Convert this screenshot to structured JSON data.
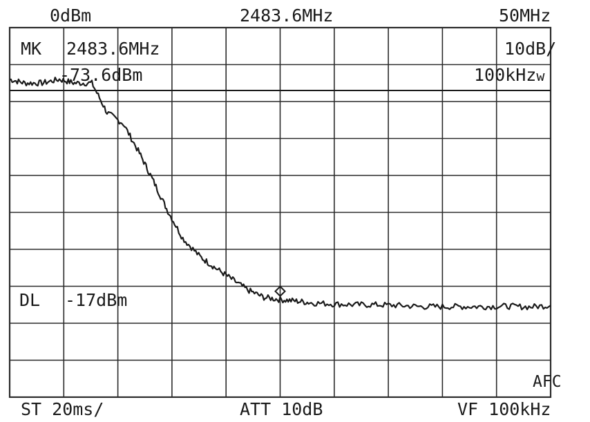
{
  "header": {
    "ref_level": "0dBm",
    "center_freq": "2483.6MHz",
    "span": "50MHz"
  },
  "marker": {
    "label": "MK",
    "freq": "2483.6MHz",
    "level": "-73.6dBm"
  },
  "settings": {
    "scale": "10dB/",
    "rbw": "100kHz",
    "rbw_suffix": "w"
  },
  "display_line": {
    "label": "DL",
    "value": "-17dBm"
  },
  "footer": {
    "sweep": "ST 20ms/",
    "attenuation": "ATT 10dB",
    "video_filter": "VF 100kHz"
  },
  "afc_label": "AFC",
  "colors": {
    "ink": "#1a1a1a",
    "grid": "#2a2a2a",
    "background": "#ffffff"
  },
  "chart_data": {
    "type": "line",
    "xlabel": "",
    "ylabel": "",
    "xlim": [
      2458.6,
      2508.6
    ],
    "ylim": [
      -100,
      0
    ],
    "x_divisions": 10,
    "y_divisions": 10,
    "grid": true,
    "marker_point": {
      "x": 2483.6,
      "y": -73.6
    },
    "display_line_dbm": -17,
    "series": [
      {
        "x": [
          2458.6,
          2460.0,
          2461.6,
          2463.2,
          2464.6,
          2466.2,
          2467.6,
          2469.1,
          2470.6,
          2471.8,
          2473.1,
          2474.6,
          2476.2,
          2477.6,
          2479.1,
          2480.6,
          2482.1,
          2483.6,
          2485.1,
          2486.6,
          2488.6,
          2490.6,
          2492.6,
          2494.6,
          2496.6,
          2498.6,
          2500.6,
          2502.6,
          2504.6,
          2506.6,
          2508.6
        ],
        "y": [
          -14,
          -15,
          -15,
          -14,
          -15,
          -15,
          -23,
          -26,
          -34,
          -41,
          -49,
          -57,
          -62,
          -65,
          -68,
          -71,
          -73,
          -73.6,
          -74,
          -74.5,
          -74.8,
          -75,
          -75,
          -75.2,
          -75.5,
          -75.5,
          -75.5,
          -75.5,
          -75.4,
          -75.6,
          -75.2
        ]
      }
    ]
  }
}
